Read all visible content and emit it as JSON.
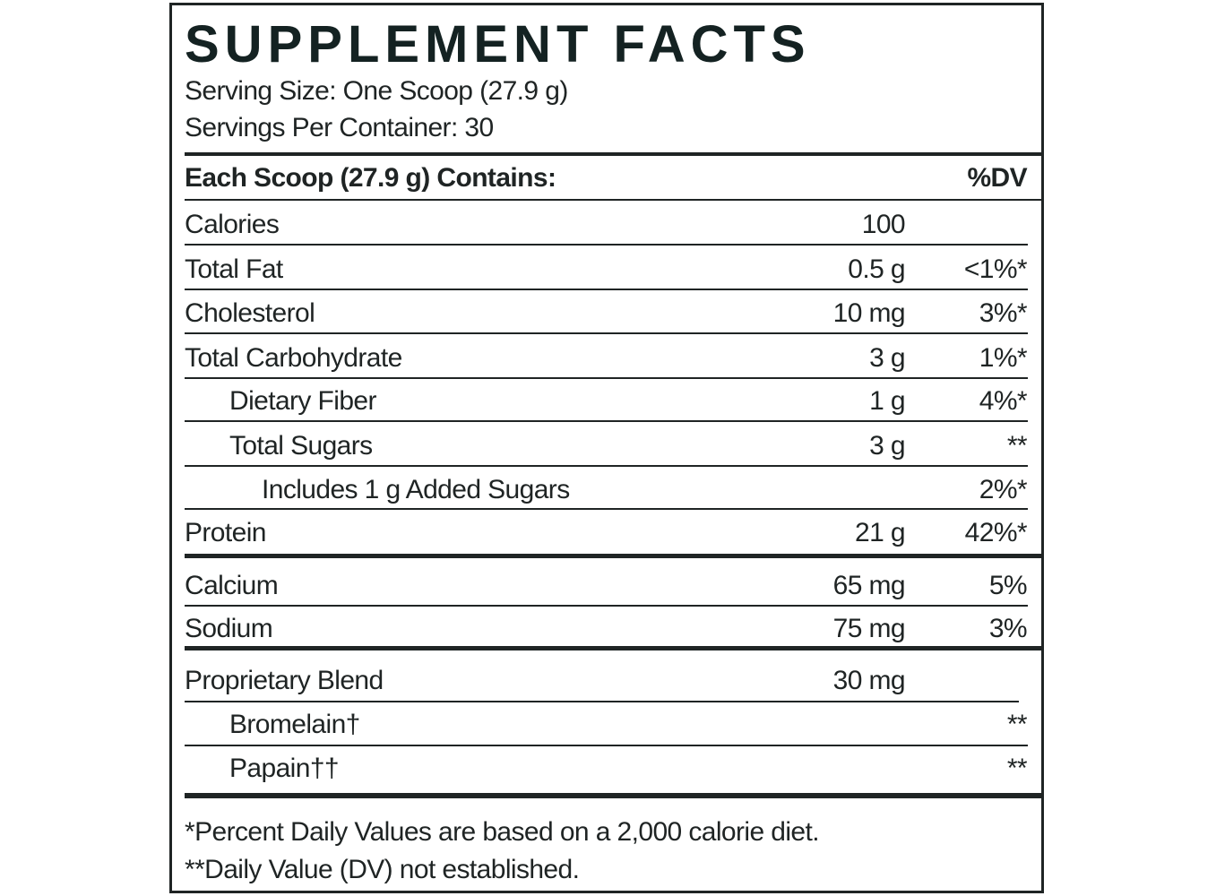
{
  "title": "SUPPLEMENT FACTS",
  "serving_size": "Serving Size: One Scoop (27.9 g)",
  "servings_per_container": "Servings Per Container: 30",
  "header": {
    "label": "Each Scoop (27.9 g) Contains:",
    "dv": "%DV"
  },
  "rows": [
    {
      "name": "Calories",
      "amount": "100"
    },
    {
      "name": "Total Fat",
      "amount": "0.5 g",
      "dv": "<1%*"
    },
    {
      "name": "Cholesterol",
      "amount": "10 mg",
      "dv": "3%*"
    },
    {
      "name": "Total Carbohydrate",
      "amount": "3 g",
      "dv": "1%*"
    },
    {
      "name": "Dietary Fiber",
      "amount": "1 g",
      "dv": "4%*"
    },
    {
      "name": "Total Sugars",
      "amount": "3 g",
      "dv": "**"
    },
    {
      "name": "Includes 1 g Added Sugars",
      "dv": "2%*"
    },
    {
      "name": "Protein",
      "amount": "21 g",
      "dv": "42%*"
    },
    {
      "name": "Calcium",
      "amount": "65 mg",
      "dv": "5%"
    },
    {
      "name": "Sodium",
      "amount": "75 mg",
      "dv": "3%"
    },
    {
      "name": "Proprietary Blend",
      "amount": "30 mg"
    },
    {
      "name": "Bromelain†",
      "dv": "**"
    },
    {
      "name": "Papain††",
      "dv": "**"
    }
  ],
  "footnotes": [
    "*Percent Daily Values are based on a 2,000 calorie diet.",
    "**Daily Value (DV) not established."
  ]
}
